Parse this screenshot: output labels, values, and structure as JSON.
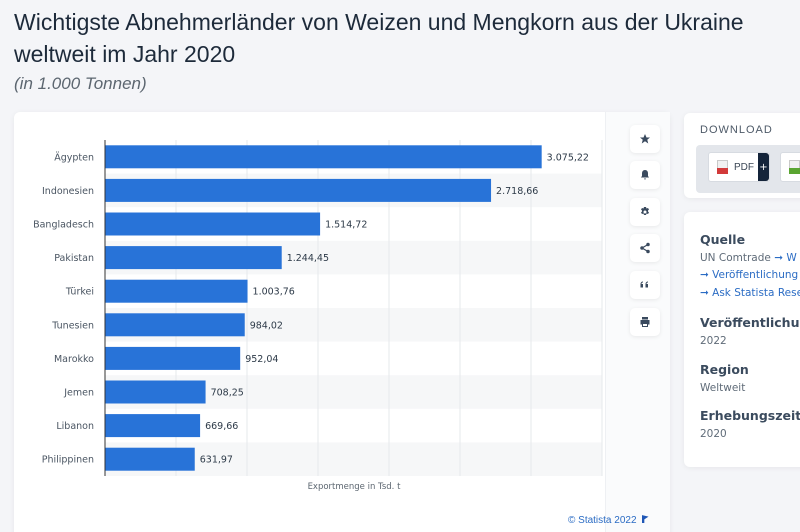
{
  "header": {
    "title_line1": "Wichtigste Abnehmerländer von Weizen und Mengkorn aus der Ukraine",
    "title_line2": "weltweit im Jahr 2020",
    "subtitle": "(in 1.000 Tonnen)"
  },
  "chart_data": {
    "type": "bar",
    "orientation": "horizontal",
    "title": "Wichtigste Abnehmerländer von Weizen und Mengkorn aus der Ukraine weltweit im Jahr 2020",
    "subtitle": "(in 1.000 Tonnen)",
    "categories": [
      "Ägypten",
      "Indonesien",
      "Bangladesch",
      "Pakistan",
      "Türkei",
      "Tunesien",
      "Marokko",
      "Jemen",
      "Libanon",
      "Philippinen"
    ],
    "values": [
      3075.22,
      2718.66,
      1514.72,
      1244.45,
      1003.76,
      984.02,
      952.04,
      708.25,
      669.66,
      631.97
    ],
    "value_labels": [
      "3.075,22",
      "2.718,66",
      "1.514,72",
      "1.244,45",
      "1.003,76",
      "984,02",
      "952,04",
      "708,25",
      "669,66",
      "631,97"
    ],
    "xlabel": "Exportmenge in Tsd. t",
    "ylabel": "",
    "xlim": [
      0,
      3500
    ],
    "grid": true,
    "grid_step": 500,
    "bar_color": "#2873d8",
    "legend": "none"
  },
  "copyright": "© Statista 2022",
  "toolbar": {
    "icons": [
      "star-icon",
      "bell-icon",
      "gear-icon",
      "share-icon",
      "quote-icon",
      "print-icon"
    ]
  },
  "download": {
    "title": "DOWNLOAD",
    "pdf_label": "PDF",
    "plus": "+"
  },
  "info": {
    "source_heading": "Quelle",
    "source_value": "UN Comtrade",
    "source_link1": "➞ W",
    "source_link2": "➞ Veröffentlichung",
    "source_link3": "➞ Ask Statista Rese",
    "published_heading": "Veröffentlichung",
    "published_value": "2022",
    "region_heading": "Region",
    "region_value": "Weltweit",
    "period_heading": "Erhebungszeitra",
    "period_value": "2020"
  }
}
